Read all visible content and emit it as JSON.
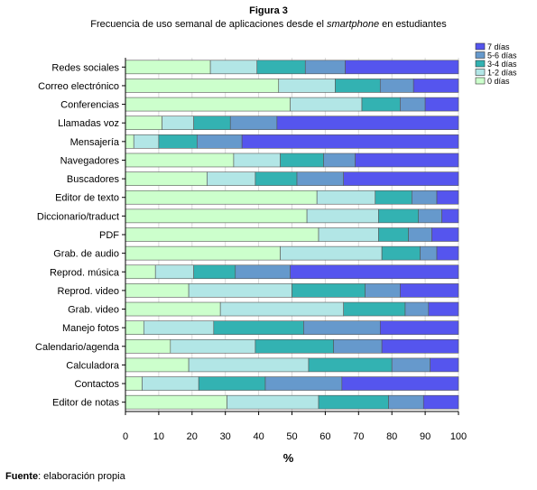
{
  "figure_number": "Figura 3",
  "title_before": "Frecuencia de uso semanal de aplicaciones desde el ",
  "title_italic": "smartphone",
  "title_after": " en estudiantes",
  "source_label": "Fuente",
  "source_text": ": elaboración propia",
  "colors": {
    "0 días": "#ccffcc",
    "1-2 días": "#b2e6e6",
    "3-4 días": "#33b2b2",
    "5-6 días": "#6699cc",
    "7 días": "#5555ee"
  },
  "chart_data": {
    "type": "bar",
    "orientation": "horizontal",
    "stacked": true,
    "xlabel": "%",
    "ylabel": "",
    "xlim": [
      0,
      100
    ],
    "xticks": [
      0,
      10,
      20,
      30,
      40,
      50,
      60,
      70,
      80,
      90,
      100
    ],
    "legend_position": "top-right",
    "categories": [
      "Redes sociales",
      "Correo electrónico",
      "Conferencias",
      "Llamadas voz",
      "Mensajería",
      "Navegadores",
      "Buscadores",
      "Editor de texto",
      "Diccionario/traduct",
      "PDF",
      "Grab. de audio",
      "Reprod. música",
      "Reprod. video",
      "Grab. video",
      "Manejo fotos",
      "Calendario/agenda",
      "Calculadora",
      "Contactos",
      "Editor de notas"
    ],
    "series": [
      {
        "name": "0 días",
        "values": [
          25.5,
          46,
          49.5,
          11,
          2.5,
          32.5,
          24.5,
          57.5,
          54.5,
          58,
          46.5,
          9,
          19,
          28.5,
          5.5,
          13.5,
          19,
          5,
          30.5
        ]
      },
      {
        "name": "1-2 días",
        "values": [
          14,
          17,
          21.5,
          9.5,
          7.5,
          14,
          14.5,
          17.5,
          21.5,
          18,
          30.5,
          11.5,
          31,
          37,
          21,
          25.5,
          36,
          17,
          27.5
        ]
      },
      {
        "name": "3-4 días",
        "values": [
          14.5,
          13.5,
          11.5,
          11,
          11.5,
          13,
          12.5,
          11,
          12,
          9,
          11.5,
          12.5,
          22,
          18.5,
          27,
          23.5,
          25,
          20,
          21
        ]
      },
      {
        "name": "5-6 días",
        "values": [
          12,
          10,
          7.5,
          14,
          13.5,
          9.5,
          14,
          7.5,
          7,
          7,
          5,
          16.5,
          10.5,
          7,
          23,
          14.5,
          11.5,
          23,
          10.5
        ]
      },
      {
        "name": "7 días",
        "values": [
          34,
          13.5,
          10,
          54.5,
          65,
          31,
          34.5,
          6.5,
          5,
          8,
          6.5,
          50.5,
          17.5,
          9,
          23.5,
          23,
          8.5,
          35,
          10.5
        ]
      }
    ]
  }
}
